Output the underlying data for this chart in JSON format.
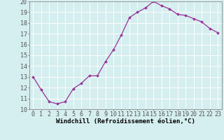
{
  "x": [
    0,
    1,
    2,
    3,
    4,
    5,
    6,
    7,
    8,
    9,
    10,
    11,
    12,
    13,
    14,
    15,
    16,
    17,
    18,
    19,
    20,
    21,
    22,
    23
  ],
  "y": [
    13.0,
    11.8,
    10.7,
    10.5,
    10.7,
    11.9,
    12.4,
    13.1,
    13.1,
    14.4,
    15.5,
    16.9,
    18.5,
    19.0,
    19.4,
    20.0,
    19.6,
    19.3,
    18.8,
    18.7,
    18.4,
    18.1,
    17.5,
    17.1
  ],
  "line_color": "#993399",
  "marker": "D",
  "marker_size": 2.0,
  "line_width": 0.9,
  "xlabel": "Windchill (Refroidissement éolien,°C)",
  "xlabel_fontsize": 6.5,
  "bg_color": "#d5eef0",
  "grid_color": "#ffffff",
  "tick_label_fontsize": 6.0,
  "ylim": [
    10,
    20
  ],
  "xlim_min": -0.5,
  "xlim_max": 23.5,
  "yticks": [
    10,
    11,
    12,
    13,
    14,
    15,
    16,
    17,
    18,
    19,
    20
  ],
  "xticks": [
    0,
    1,
    2,
    3,
    4,
    5,
    6,
    7,
    8,
    9,
    10,
    11,
    12,
    13,
    14,
    15,
    16,
    17,
    18,
    19,
    20,
    21,
    22,
    23
  ],
  "spine_color": "#888888",
  "tick_color": "#555555"
}
